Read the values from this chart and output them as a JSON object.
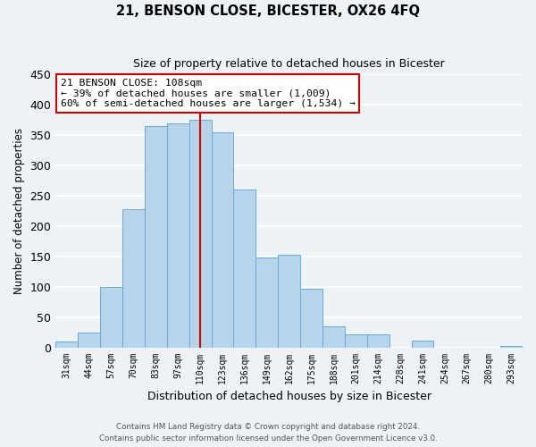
{
  "title": "21, BENSON CLOSE, BICESTER, OX26 4FQ",
  "subtitle": "Size of property relative to detached houses in Bicester",
  "xlabel": "Distribution of detached houses by size in Bicester",
  "ylabel": "Number of detached properties",
  "bar_labels": [
    "31sqm",
    "44sqm",
    "57sqm",
    "70sqm",
    "83sqm",
    "97sqm",
    "110sqm",
    "123sqm",
    "136sqm",
    "149sqm",
    "162sqm",
    "175sqm",
    "188sqm",
    "201sqm",
    "214sqm",
    "228sqm",
    "241sqm",
    "254sqm",
    "267sqm",
    "280sqm",
    "293sqm"
  ],
  "bar_values": [
    10,
    25,
    100,
    228,
    365,
    370,
    375,
    355,
    260,
    148,
    153,
    97,
    35,
    22,
    22,
    0,
    11,
    0,
    0,
    0,
    2
  ],
  "bar_color": "#b8d4ea",
  "bar_edge_color": "#6aaad4",
  "vline_x": 6,
  "vline_color": "#cc0000",
  "ylim": [
    0,
    450
  ],
  "yticks": [
    0,
    50,
    100,
    150,
    200,
    250,
    300,
    350,
    400,
    450
  ],
  "annotation_title": "21 BENSON CLOSE: 108sqm",
  "annotation_line1": "← 39% of detached houses are smaller (1,009)",
  "annotation_line2": "60% of semi-detached houses are larger (1,534) →",
  "annotation_box_color": "#ffffff",
  "annotation_box_edge": "#cc0000",
  "footer_line1": "Contains HM Land Registry data © Crown copyright and database right 2024.",
  "footer_line2": "Contains public sector information licensed under the Open Government Licence v3.0.",
  "background_color": "#edf2f7",
  "grid_color": "#ffffff"
}
